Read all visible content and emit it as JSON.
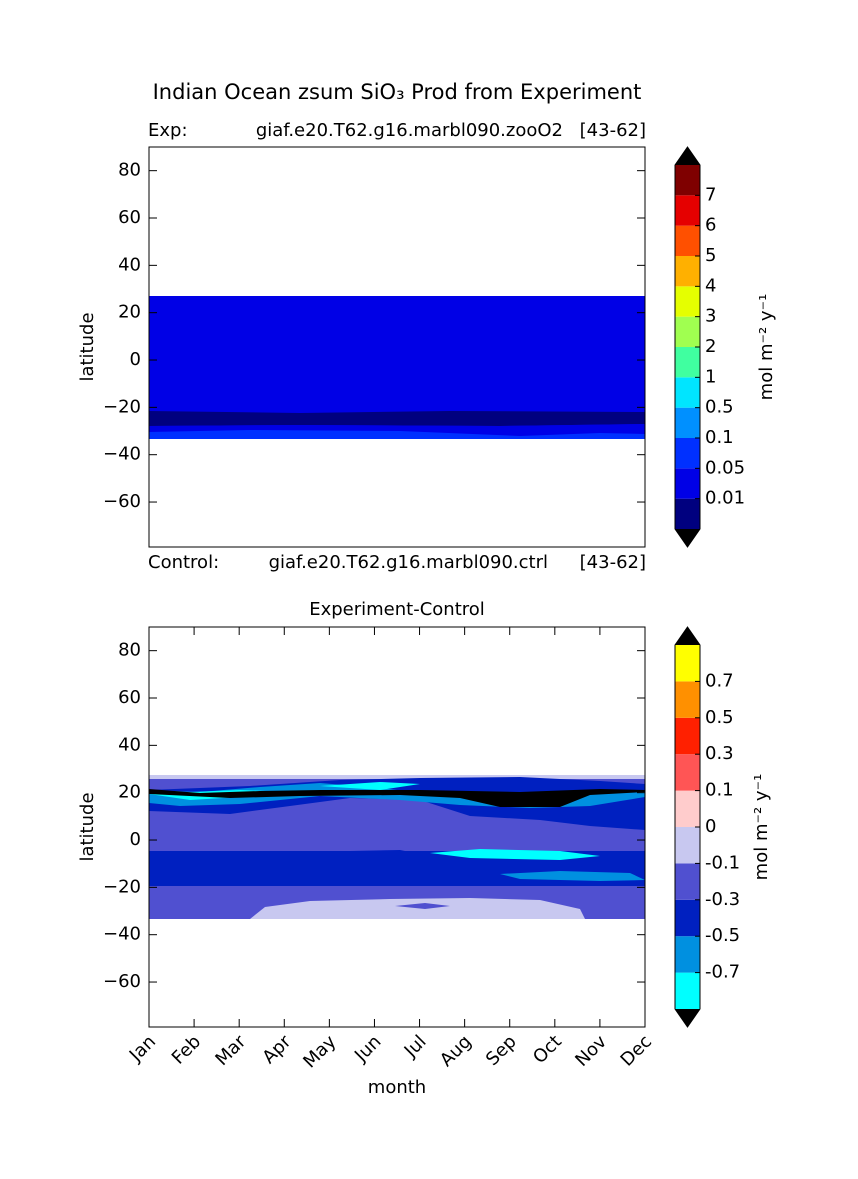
{
  "figure_title": "Indian Ocean zsum SiO₃ Prod from Experiment",
  "chart_data": [
    {
      "type": "contour",
      "experiment_label": "Exp:",
      "experiment_name": "giaf.e20.T62.g16.marbl090.zooO2",
      "experiment_years": "[43-62]",
      "control_label": "Control:",
      "control_name": "giaf.e20.T62.g16.marbl090.ctrl",
      "control_years": "[43-62]",
      "ylabel": "latitude",
      "ylim": [
        -79,
        90
      ],
      "yticks": [
        {
          "value": -60,
          "label": "−60"
        },
        {
          "value": -40,
          "label": "−40"
        },
        {
          "value": -20,
          "label": "−20"
        },
        0,
        20,
        40,
        60,
        80
      ],
      "colorbar": {
        "label": "mol m⁻² y⁻¹",
        "levels": [
          0.01,
          0.05,
          0.1,
          0.5,
          1,
          2,
          3,
          4,
          5,
          6,
          7
        ],
        "colors": [
          "#00007f",
          "#0000e6",
          "#0030ff",
          "#0090ff",
          "#00e5ff",
          "#40ffa0",
          "#a0ff50",
          "#e5ff00",
          "#ffb000",
          "#ff5000",
          "#e50000",
          "#7f0000"
        ],
        "under_color": "#000000",
        "over_color": "#000000"
      }
    },
    {
      "type": "contour",
      "title": "Experiment-Control",
      "ylabel": "latitude",
      "xlabel": "month",
      "categories": [
        "Jan",
        "Feb",
        "Mar",
        "Apr",
        "May",
        "Jun",
        "Jul",
        "Aug",
        "Sep",
        "Oct",
        "Nov",
        "Dec"
      ],
      "ylim": [
        -79,
        90
      ],
      "yticks": [
        {
          "value": -60,
          "label": "−60"
        },
        {
          "value": -40,
          "label": "−40"
        },
        {
          "value": -20,
          "label": "−20"
        },
        0,
        20,
        40,
        60,
        80
      ],
      "colorbar": {
        "label": "mol m⁻² y⁻¹",
        "levels": [
          -0.7,
          -0.5,
          -0.3,
          -0.1,
          0,
          0.1,
          0.3,
          0.5,
          0.7
        ],
        "colors": [
          "#00ffff",
          "#0090e0",
          "#0020c0",
          "#5050d0",
          "#c8c8f0",
          "#ffcccc",
          "#ff5555",
          "#ff2000",
          "#ff9000",
          "#ffff00"
        ],
        "under_color": "#000000",
        "over_color": "#000000"
      }
    }
  ]
}
